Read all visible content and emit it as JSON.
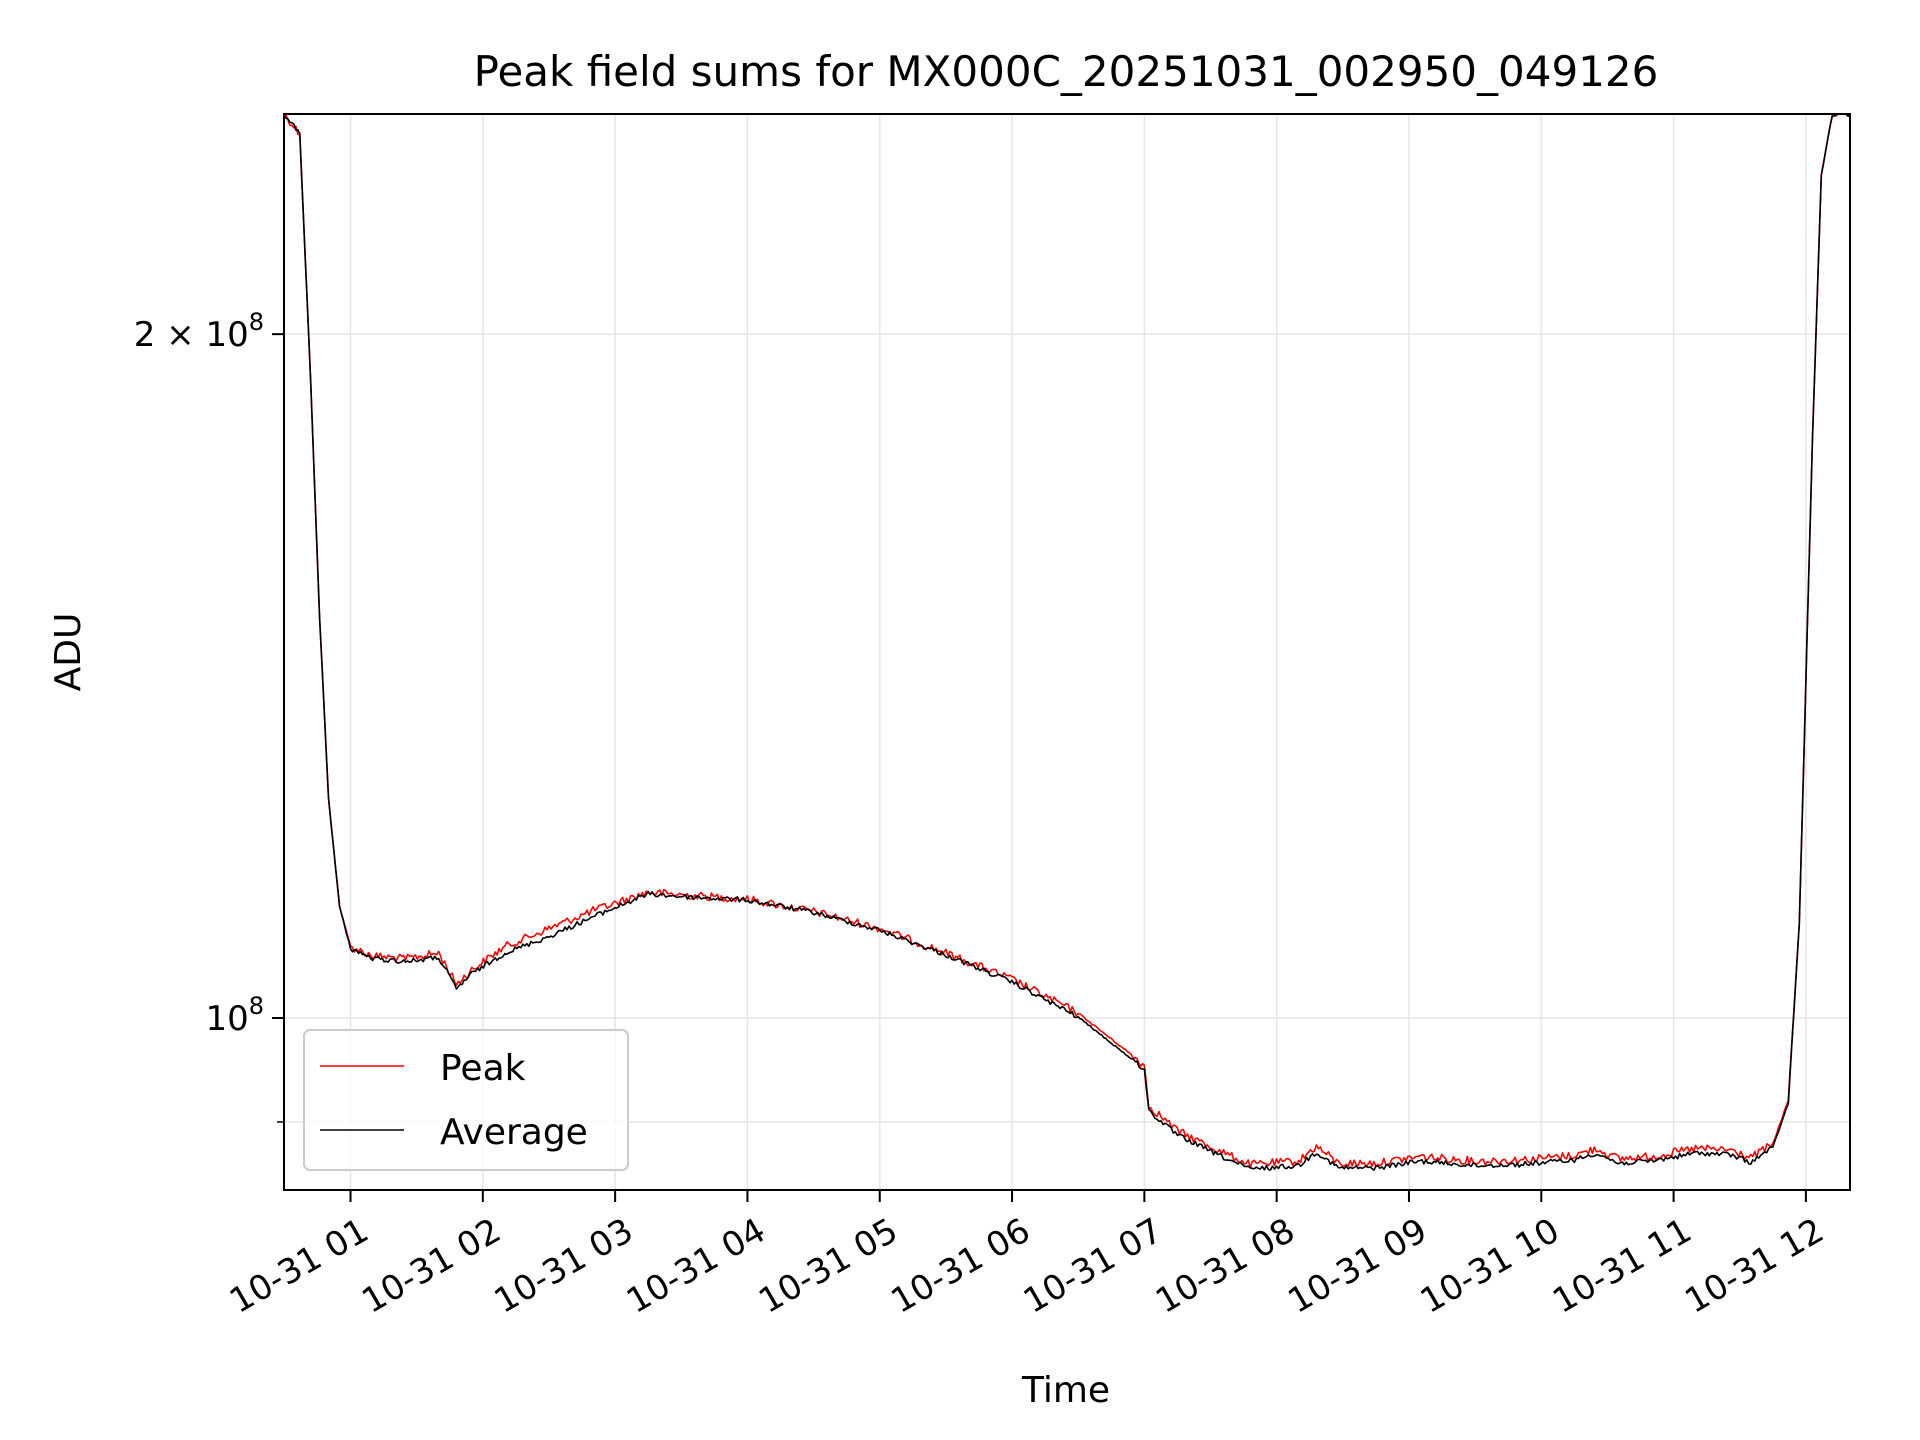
{
  "chart_data": {
    "type": "line",
    "title": "Peak field sums for MX000C_20251031_002950_049126",
    "xlabel": "Time",
    "ylabel": "ADU",
    "y_scale": "log",
    "ylim": [
      84000000,
      250000000
    ],
    "xlim": [
      "2025-10-31 00:29:50",
      "2025-10-31 12:20:00"
    ],
    "grid": true,
    "legend_position": "lower-left",
    "x_ticks": [
      {
        "t": "2025-10-31 01:00",
        "label": "10-31 01"
      },
      {
        "t": "2025-10-31 02:00",
        "label": "10-31 02"
      },
      {
        "t": "2025-10-31 03:00",
        "label": "10-31 03"
      },
      {
        "t": "2025-10-31 04:00",
        "label": "10-31 04"
      },
      {
        "t": "2025-10-31 05:00",
        "label": "10-31 05"
      },
      {
        "t": "2025-10-31 06:00",
        "label": "10-31 06"
      },
      {
        "t": "2025-10-31 07:00",
        "label": "10-31 07"
      },
      {
        "t": "2025-10-31 08:00",
        "label": "10-31 08"
      },
      {
        "t": "2025-10-31 09:00",
        "label": "10-31 09"
      },
      {
        "t": "2025-10-31 10:00",
        "label": "10-31 10"
      },
      {
        "t": "2025-10-31 11:00",
        "label": "10-31 11"
      },
      {
        "t": "2025-10-31 12:00",
        "label": "10-31 12"
      }
    ],
    "y_major_ticks": [
      {
        "value": 100000000,
        "mantissa": "",
        "base": "10",
        "exp": "8"
      },
      {
        "value": 200000000,
        "mantissa": "2",
        "base": "10",
        "exp": "8"
      }
    ],
    "y_minor_ticks": [
      90000000
    ],
    "series": [
      {
        "name": "Peak",
        "color": "#ff0000",
        "points": [
          [
            "2025-10-31 00:29:50",
            250000000
          ],
          [
            "2025-10-31 00:37:00",
            245000000
          ],
          [
            "2025-10-31 00:42:00",
            190000000
          ],
          [
            "2025-10-31 00:46:00",
            150000000
          ],
          [
            "2025-10-31 00:50:00",
            125000000
          ],
          [
            "2025-10-31 00:55:00",
            112000000
          ],
          [
            "2025-10-31 01:00:00",
            107500000
          ],
          [
            "2025-10-31 01:10:00",
            106500000
          ],
          [
            "2025-10-31 01:25:00",
            106200000
          ],
          [
            "2025-10-31 01:40:00",
            106800000
          ],
          [
            "2025-10-31 01:48:00",
            103500000
          ],
          [
            "2025-10-31 01:55:00",
            105000000
          ],
          [
            "2025-10-31 02:10:00",
            107500000
          ],
          [
            "2025-10-31 02:30:00",
            109500000
          ],
          [
            "2025-10-31 02:50:00",
            111500000
          ],
          [
            "2025-10-31 03:15:00",
            113600000
          ],
          [
            "2025-10-31 03:30:00",
            113300000
          ],
          [
            "2025-10-31 04:00:00",
            112800000
          ],
          [
            "2025-10-31 04:30:00",
            111400000
          ],
          [
            "2025-10-31 05:00:00",
            109500000
          ],
          [
            "2025-10-31 05:30:00",
            106800000
          ],
          [
            "2025-10-31 06:00:00",
            104000000
          ],
          [
            "2025-10-31 06:30:00",
            100500000
          ],
          [
            "2025-10-31 06:55:00",
            96200000
          ],
          [
            "2025-10-31 07:00:00",
            95300000
          ],
          [
            "2025-10-31 07:02:00",
            91500000
          ],
          [
            "2025-10-31 07:15:00",
            89200000
          ],
          [
            "2025-10-31 07:35:00",
            87300000
          ],
          [
            "2025-10-31 07:48:00",
            86200000
          ],
          [
            "2025-10-31 08:10:00",
            86500000
          ],
          [
            "2025-10-31 08:18:00",
            87800000
          ],
          [
            "2025-10-31 08:28:00",
            86300000
          ],
          [
            "2025-10-31 08:45:00",
            86300000
          ],
          [
            "2025-10-31 09:05:00",
            86900000
          ],
          [
            "2025-10-31 09:30:00",
            86500000
          ],
          [
            "2025-10-31 09:50:00",
            86600000
          ],
          [
            "2025-10-31 10:15:00",
            87000000
          ],
          [
            "2025-10-31 10:25:00",
            87600000
          ],
          [
            "2025-10-31 10:35:00",
            86700000
          ],
          [
            "2025-10-31 10:50:00",
            86900000
          ],
          [
            "2025-10-31 11:10:00",
            87600000
          ],
          [
            "2025-10-31 11:25:00",
            87500000
          ],
          [
            "2025-10-31 11:35:00",
            86800000
          ],
          [
            "2025-10-31 11:45:00",
            88000000
          ],
          [
            "2025-10-31 11:52:00",
            92000000
          ],
          [
            "2025-10-31 11:57:00",
            110000000
          ],
          [
            "2025-10-31 12:03:00",
            180000000
          ],
          [
            "2025-10-31 12:07:00",
            235000000
          ],
          [
            "2025-10-31 12:12:00",
            250000000
          ],
          [
            "2025-10-31 12:20:00",
            250000000
          ]
        ]
      },
      {
        "name": "Average",
        "color": "#000000",
        "points": [
          [
            "2025-10-31 00:29:50",
            250000000
          ],
          [
            "2025-10-31 00:37:00",
            245000000
          ],
          [
            "2025-10-31 00:42:00",
            190000000
          ],
          [
            "2025-10-31 00:46:00",
            150000000
          ],
          [
            "2025-10-31 00:50:00",
            125000000
          ],
          [
            "2025-10-31 00:55:00",
            112000000
          ],
          [
            "2025-10-31 01:00:00",
            107300000
          ],
          [
            "2025-10-31 01:10:00",
            106200000
          ],
          [
            "2025-10-31 01:25:00",
            105900000
          ],
          [
            "2025-10-31 01:40:00",
            106300000
          ],
          [
            "2025-10-31 01:48:00",
            103000000
          ],
          [
            "2025-10-31 01:55:00",
            104600000
          ],
          [
            "2025-10-31 02:10:00",
            106800000
          ],
          [
            "2025-10-31 02:30:00",
            108600000
          ],
          [
            "2025-10-31 02:50:00",
            110800000
          ],
          [
            "2025-10-31 03:15:00",
            113400000
          ],
          [
            "2025-10-31 03:30:00",
            113100000
          ],
          [
            "2025-10-31 04:00:00",
            112700000
          ],
          [
            "2025-10-31 04:30:00",
            111300000
          ],
          [
            "2025-10-31 05:00:00",
            109300000
          ],
          [
            "2025-10-31 05:30:00",
            106600000
          ],
          [
            "2025-10-31 06:00:00",
            103700000
          ],
          [
            "2025-10-31 06:30:00",
            100100000
          ],
          [
            "2025-10-31 06:55:00",
            95800000
          ],
          [
            "2025-10-31 07:00:00",
            94900000
          ],
          [
            "2025-10-31 07:02:00",
            91000000
          ],
          [
            "2025-10-31 07:15:00",
            88800000
          ],
          [
            "2025-10-31 07:35:00",
            86900000
          ],
          [
            "2025-10-31 07:48:00",
            85800000
          ],
          [
            "2025-10-31 08:10:00",
            86100000
          ],
          [
            "2025-10-31 08:18:00",
            87300000
          ],
          [
            "2025-10-31 08:28:00",
            85900000
          ],
          [
            "2025-10-31 08:45:00",
            85900000
          ],
          [
            "2025-10-31 09:05:00",
            86500000
          ],
          [
            "2025-10-31 09:30:00",
            86100000
          ],
          [
            "2025-10-31 09:50:00",
            86200000
          ],
          [
            "2025-10-31 10:15:00",
            86600000
          ],
          [
            "2025-10-31 10:25:00",
            87200000
          ],
          [
            "2025-10-31 10:35:00",
            86300000
          ],
          [
            "2025-10-31 10:50:00",
            86500000
          ],
          [
            "2025-10-31 11:10:00",
            87200000
          ],
          [
            "2025-10-31 11:25:00",
            87100000
          ],
          [
            "2025-10-31 11:35:00",
            86400000
          ],
          [
            "2025-10-31 11:45:00",
            87700000
          ],
          [
            "2025-10-31 11:52:00",
            91700000
          ],
          [
            "2025-10-31 11:57:00",
            110000000
          ],
          [
            "2025-10-31 12:03:00",
            180000000
          ],
          [
            "2025-10-31 12:07:00",
            235000000
          ],
          [
            "2025-10-31 12:12:00",
            250000000
          ],
          [
            "2025-10-31 12:20:00",
            250000000
          ]
        ]
      }
    ]
  }
}
